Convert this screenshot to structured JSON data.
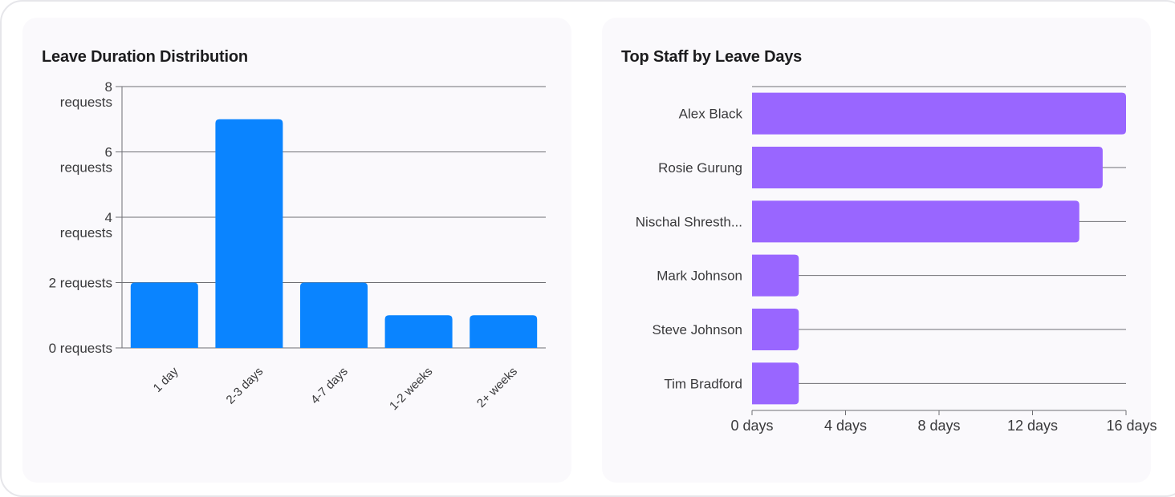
{
  "charts": {
    "left_title": "Leave Duration Distribution",
    "right_title": "Top Staff by Leave Days"
  },
  "colors": {
    "bar_blue": "#0a84ff",
    "bar_purple": "#9966ff",
    "grid": "#6e6e73",
    "text": "#3a3a3c"
  },
  "chart_data": [
    {
      "type": "bar",
      "title": "Leave Duration Distribution",
      "categories": [
        "1 day",
        "2-3 days",
        "4-7 days",
        "1-2 weeks",
        "2+ weeks"
      ],
      "values": [
        2,
        7,
        2,
        1,
        1
      ],
      "ylim": [
        0,
        8
      ],
      "yticks": [
        0,
        2,
        4,
        6,
        8
      ],
      "ytick_labels": [
        "0 requests",
        "2 requests",
        "4 requests",
        "6 requests",
        "8 requests"
      ],
      "ytick_display_first": "0 requests",
      "xlabel": "",
      "ylabel": "",
      "grid": true
    },
    {
      "type": "bar",
      "orientation": "horizontal",
      "title": "Top Staff by Leave Days",
      "categories": [
        "Alex Black",
        "Rosie Gurung",
        "Nischal Shresth...",
        "Mark Johnson",
        "Steve Johnson",
        "Tim Bradford"
      ],
      "values": [
        16,
        15,
        14,
        2,
        2,
        2
      ],
      "xlim": [
        0,
        16
      ],
      "xticks": [
        0,
        4,
        8,
        12,
        16
      ],
      "xtick_labels": [
        "0 days",
        "4 days",
        "8 days",
        "12 days",
        "16 days"
      ],
      "xlabel": "",
      "ylabel": "",
      "grid": true
    }
  ]
}
